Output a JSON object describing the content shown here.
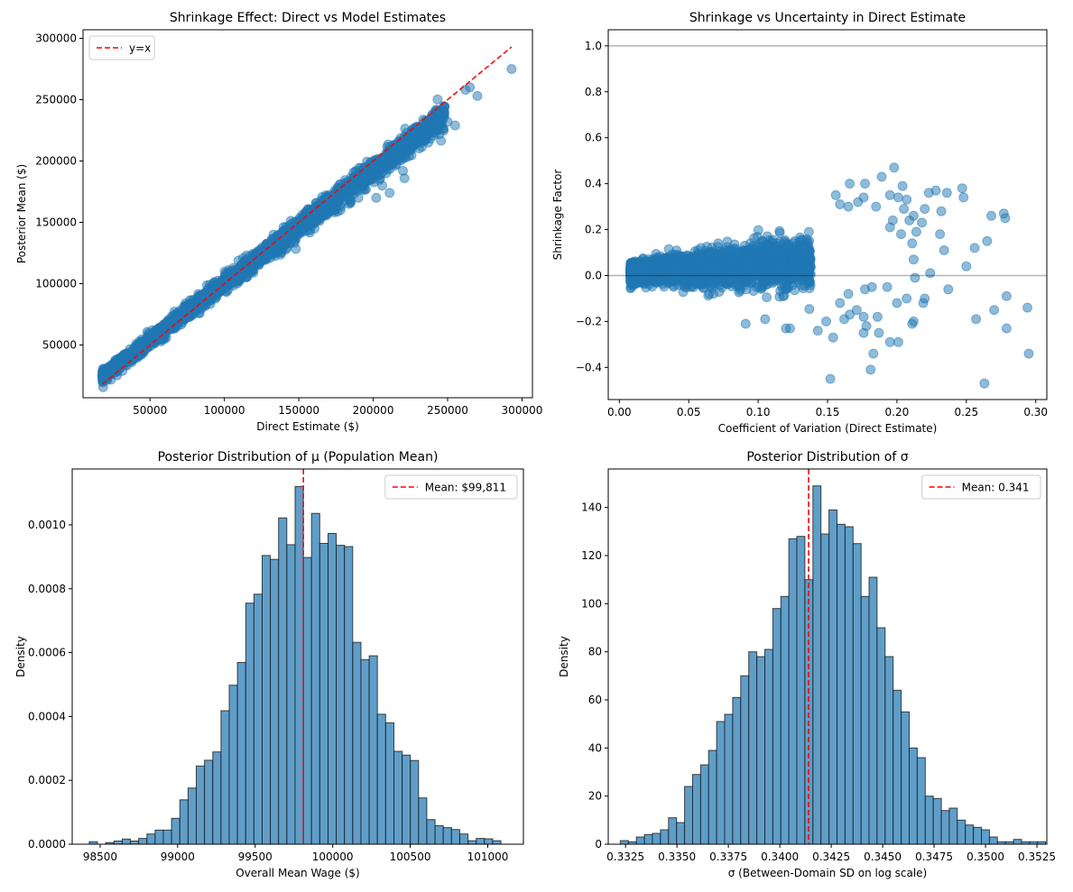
{
  "chart_data": [
    {
      "id": "tl",
      "type": "scatter",
      "title": "Shrinkage Effect: Direct vs Model Estimates",
      "xlabel": "Direct Estimate ($)",
      "ylabel": "Posterior Mean ($)",
      "xlim": [
        5000,
        307000
      ],
      "ylim": [
        7000,
        307000
      ],
      "xticks": [
        50000,
        100000,
        150000,
        200000,
        250000,
        300000
      ],
      "yticks": [
        50000,
        100000,
        150000,
        200000,
        250000,
        300000
      ],
      "grid": false,
      "legend": {
        "position": "top-left",
        "entries": [
          {
            "label": "y=x",
            "style": "red-dashed"
          }
        ]
      },
      "reference_line": {
        "from": [
          18000,
          18000
        ],
        "to": [
          293000,
          293000
        ]
      },
      "outliers": [
        [
          293000,
          275000
        ],
        [
          270000,
          253000
        ],
        [
          255000,
          229000
        ],
        [
          250000,
          232000
        ],
        [
          262000,
          258000
        ],
        [
          265000,
          260000
        ],
        [
          246000,
          240000
        ],
        [
          242000,
          223000
        ],
        [
          237000,
          215000
        ],
        [
          232000,
          215000
        ],
        [
          221000,
          186000
        ],
        [
          211000,
          174000
        ],
        [
          202000,
          170000
        ],
        [
          190000,
          170000
        ],
        [
          206000,
          180000
        ],
        [
          220000,
          192000
        ],
        [
          198000,
          185000
        ],
        [
          185000,
          168000
        ],
        [
          178000,
          160000
        ],
        [
          160000,
          150000
        ],
        [
          147000,
          135000
        ],
        [
          224000,
          204000
        ],
        [
          216000,
          204000
        ],
        [
          240000,
          230000
        ],
        [
          228000,
          220000
        ],
        [
          234000,
          226000
        ]
      ]
    },
    {
      "id": "tr",
      "type": "scatter",
      "title": "Shrinkage vs Uncertainty in Direct Estimate",
      "xlabel": "Coefficient of Variation (Direct Estimate)",
      "ylabel": "Shrinkage Factor",
      "xlim": [
        -0.008,
        0.308
      ],
      "ylim": [
        -0.54,
        1.07
      ],
      "xticks": [
        0.0,
        0.05,
        0.1,
        0.15,
        0.2,
        0.25,
        0.3
      ],
      "ytick_labels": [
        "−0.4",
        "−0.2",
        "0.0",
        "0.2",
        "0.4",
        "0.6",
        "0.8",
        "1.0"
      ],
      "yticks": [
        -0.4,
        -0.2,
        0.0,
        0.2,
        0.4,
        0.6,
        0.8,
        1.0
      ],
      "grid": false,
      "hlines": [
        0.0,
        1.0
      ],
      "outliers": [
        [
          0.198,
          0.47
        ],
        [
          0.189,
          0.43
        ],
        [
          0.166,
          0.4
        ],
        [
          0.177,
          0.4
        ],
        [
          0.204,
          0.39
        ],
        [
          0.247,
          0.38
        ],
        [
          0.228,
          0.37
        ],
        [
          0.223,
          0.36
        ],
        [
          0.236,
          0.36
        ],
        [
          0.248,
          0.34
        ],
        [
          0.156,
          0.35
        ],
        [
          0.195,
          0.35
        ],
        [
          0.201,
          0.34
        ],
        [
          0.207,
          0.33
        ],
        [
          0.277,
          0.27
        ],
        [
          0.268,
          0.26
        ],
        [
          0.278,
          0.25
        ],
        [
          0.265,
          0.15
        ],
        [
          0.256,
          0.12
        ],
        [
          0.234,
          0.11
        ],
        [
          0.25,
          0.04
        ],
        [
          0.224,
          0.01
        ],
        [
          0.237,
          -0.06
        ],
        [
          0.279,
          -0.09
        ],
        [
          0.294,
          -0.14
        ],
        [
          0.27,
          -0.15
        ],
        [
          0.257,
          -0.19
        ],
        [
          0.279,
          -0.23
        ],
        [
          0.295,
          -0.34
        ],
        [
          0.263,
          -0.47
        ],
        [
          0.152,
          -0.45
        ],
        [
          0.181,
          -0.41
        ],
        [
          0.183,
          -0.34
        ],
        [
          0.195,
          -0.29
        ],
        [
          0.201,
          -0.29
        ],
        [
          0.187,
          -0.25
        ],
        [
          0.154,
          -0.27
        ],
        [
          0.143,
          -0.24
        ],
        [
          0.211,
          -0.21
        ],
        [
          0.212,
          -0.2
        ],
        [
          0.219,
          -0.12
        ],
        [
          0.2,
          -0.12
        ],
        [
          0.22,
          -0.1
        ],
        [
          0.207,
          -0.1
        ],
        [
          0.091,
          -0.21
        ],
        [
          0.105,
          -0.19
        ],
        [
          0.12,
          -0.23
        ],
        [
          0.123,
          -0.23
        ],
        [
          0.212,
          0.26
        ],
        [
          0.218,
          0.23
        ],
        [
          0.209,
          0.24
        ],
        [
          0.232,
          0.28
        ],
        [
          0.22,
          0.29
        ],
        [
          0.211,
          0.14
        ],
        [
          0.214,
          0.19
        ],
        [
          0.195,
          0.21
        ],
        [
          0.172,
          0.32
        ],
        [
          0.185,
          0.3
        ],
        [
          0.176,
          0.34
        ],
        [
          0.165,
          0.3
        ],
        [
          0.159,
          0.31
        ],
        [
          0.205,
          0.29
        ],
        [
          0.197,
          0.24
        ],
        [
          0.203,
          0.18
        ],
        [
          0.231,
          0.18
        ],
        [
          0.212,
          0.07
        ],
        [
          0.213,
          -0.01
        ],
        [
          0.193,
          -0.05
        ],
        [
          0.177,
          -0.06
        ],
        [
          0.165,
          -0.08
        ],
        [
          0.182,
          -0.05
        ],
        [
          0.171,
          -0.15
        ],
        [
          0.166,
          -0.17
        ],
        [
          0.178,
          -0.22
        ],
        [
          0.176,
          -0.18
        ],
        [
          0.186,
          -0.18
        ],
        [
          0.176,
          -0.25
        ],
        [
          0.162,
          -0.19
        ],
        [
          0.149,
          -0.2
        ],
        [
          0.159,
          -0.12
        ]
      ]
    },
    {
      "id": "bl",
      "type": "histogram",
      "title": "Posterior Distribution of μ (Population Mean)",
      "xlabel": "Overall Mean Wage ($)",
      "ylabel": "Density",
      "xlim": [
        98320,
        101230
      ],
      "ylim": [
        0,
        0.001175
      ],
      "xticks": [
        98500,
        99000,
        99500,
        100000,
        100500,
        101000
      ],
      "yticks": [
        0.0,
        0.0002,
        0.0004,
        0.0006,
        0.0008,
        0.001
      ],
      "ytick_labels": [
        "0.0000",
        "0.0002",
        "0.0004",
        "0.0006",
        "0.0008",
        "0.0010"
      ],
      "grid": false,
      "bin_start": 98430,
      "bin_width": 53.1,
      "values": [
        8e-06,
        0.0,
        5e-06,
        1e-05,
        1.6e-05,
        1e-05,
        1.8e-05,
        3.2e-05,
        4.4e-05,
        4.4e-05,
        8.1e-05,
        0.000139,
        0.000176,
        0.000245,
        0.000263,
        0.000289,
        0.000418,
        0.000498,
        0.000569,
        0.000755,
        0.000783,
        0.000904,
        0.000892,
        0.001022,
        0.000938,
        0.00112,
        0.000898,
        0.001036,
        0.000942,
        0.000973,
        0.000936,
        0.000932,
        0.000632,
        0.000578,
        0.00059,
        0.000407,
        0.00038,
        0.000291,
        0.000279,
        0.000262,
        0.000145,
        7.7e-05,
        5.8e-05,
        5.2e-05,
        4.6e-05,
        3.2e-05,
        1.1e-05,
        1.8e-05,
        1.7e-05,
        1.1e-05
      ],
      "mean_line": {
        "value": 99811,
        "label": "Mean: $99,811"
      },
      "legend": {
        "position": "top-right",
        "entries": [
          {
            "label": "Mean: $99,811",
            "style": "red-dashed"
          }
        ]
      }
    },
    {
      "id": "br",
      "type": "histogram",
      "title": "Posterior Distribution of σ",
      "xlabel": "σ (Between-Domain SD on log scale)",
      "ylabel": "Density",
      "xlim": [
        0.33166,
        0.35298
      ],
      "ylim": [
        0,
        156
      ],
      "xticks": [
        0.3325,
        0.335,
        0.3375,
        0.34,
        0.3425,
        0.345,
        0.3475,
        0.35,
        0.3525
      ],
      "ytick_labels": [
        "0",
        "20",
        "40",
        "60",
        "80",
        "100",
        "120",
        "140"
      ],
      "yticks": [
        0,
        20,
        40,
        60,
        80,
        100,
        120,
        140
      ],
      "grid": false,
      "bin_start": 0.33225,
      "bin_width": 0.00039,
      "values": [
        1.5,
        1,
        3,
        4,
        4.5,
        6,
        11,
        9,
        24,
        29,
        33,
        39,
        51,
        54,
        61,
        70,
        80,
        78,
        81,
        98,
        103,
        127,
        128,
        110,
        149,
        129,
        139,
        133,
        132,
        125,
        103,
        111,
        90,
        78,
        64,
        55,
        40,
        36,
        20,
        19,
        14,
        15,
        10,
        8,
        7,
        6,
        3,
        1,
        1,
        2,
        1,
        1,
        1
      ],
      "mean_line": {
        "value": 0.3414,
        "label": "Mean: 0.341"
      },
      "legend": {
        "position": "top-right",
        "entries": [
          {
            "label": "Mean: 0.341",
            "style": "red-dashed"
          }
        ]
      }
    }
  ],
  "colors": {
    "scatter": "#1f77b4",
    "bar_fill": "#5f9ec9",
    "bar_edge": "#1a1a1a",
    "mean_line": "#ff0000",
    "ref_line": "#999999"
  }
}
